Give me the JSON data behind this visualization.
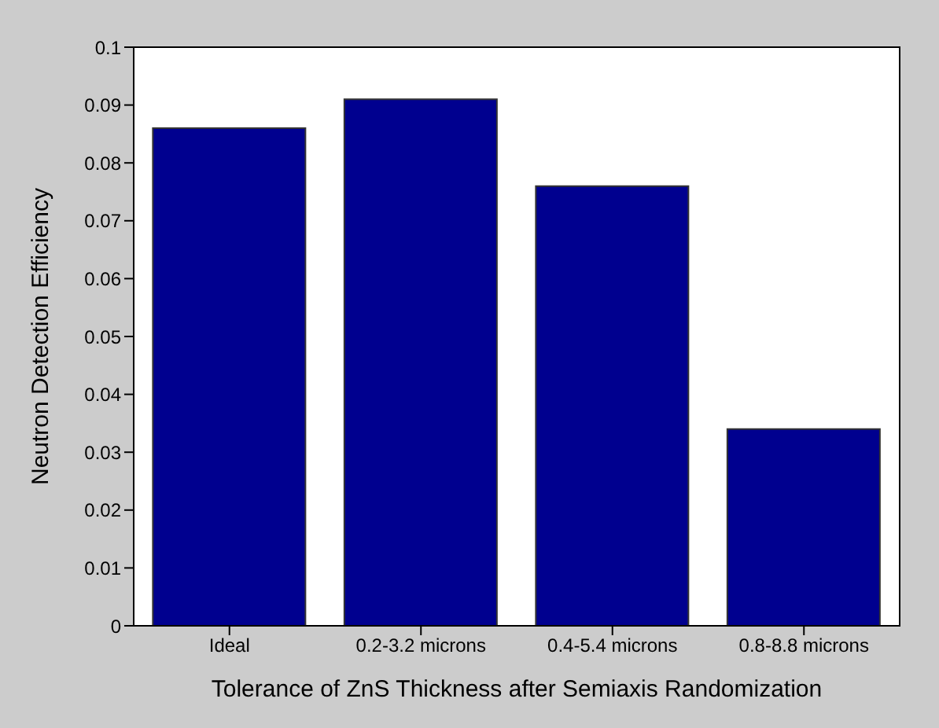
{
  "chart_data": {
    "type": "bar",
    "xlabel": "Tolerance of ZnS Thickness after Semiaxis Randomization",
    "ylabel": "Neutron Detection Efficiency",
    "categories": [
      "Ideal",
      "0.2-3.2 microns",
      "0.4-5.4 microns",
      "0.8-8.8 microns"
    ],
    "values": [
      0.086,
      0.091,
      0.076,
      0.034
    ],
    "color": "#00008f",
    "ylim": [
      0,
      0.1
    ],
    "yticks": [
      0,
      0.01,
      0.02,
      0.03,
      0.04,
      0.05,
      0.06,
      0.07,
      0.08,
      0.09,
      0.1
    ]
  }
}
